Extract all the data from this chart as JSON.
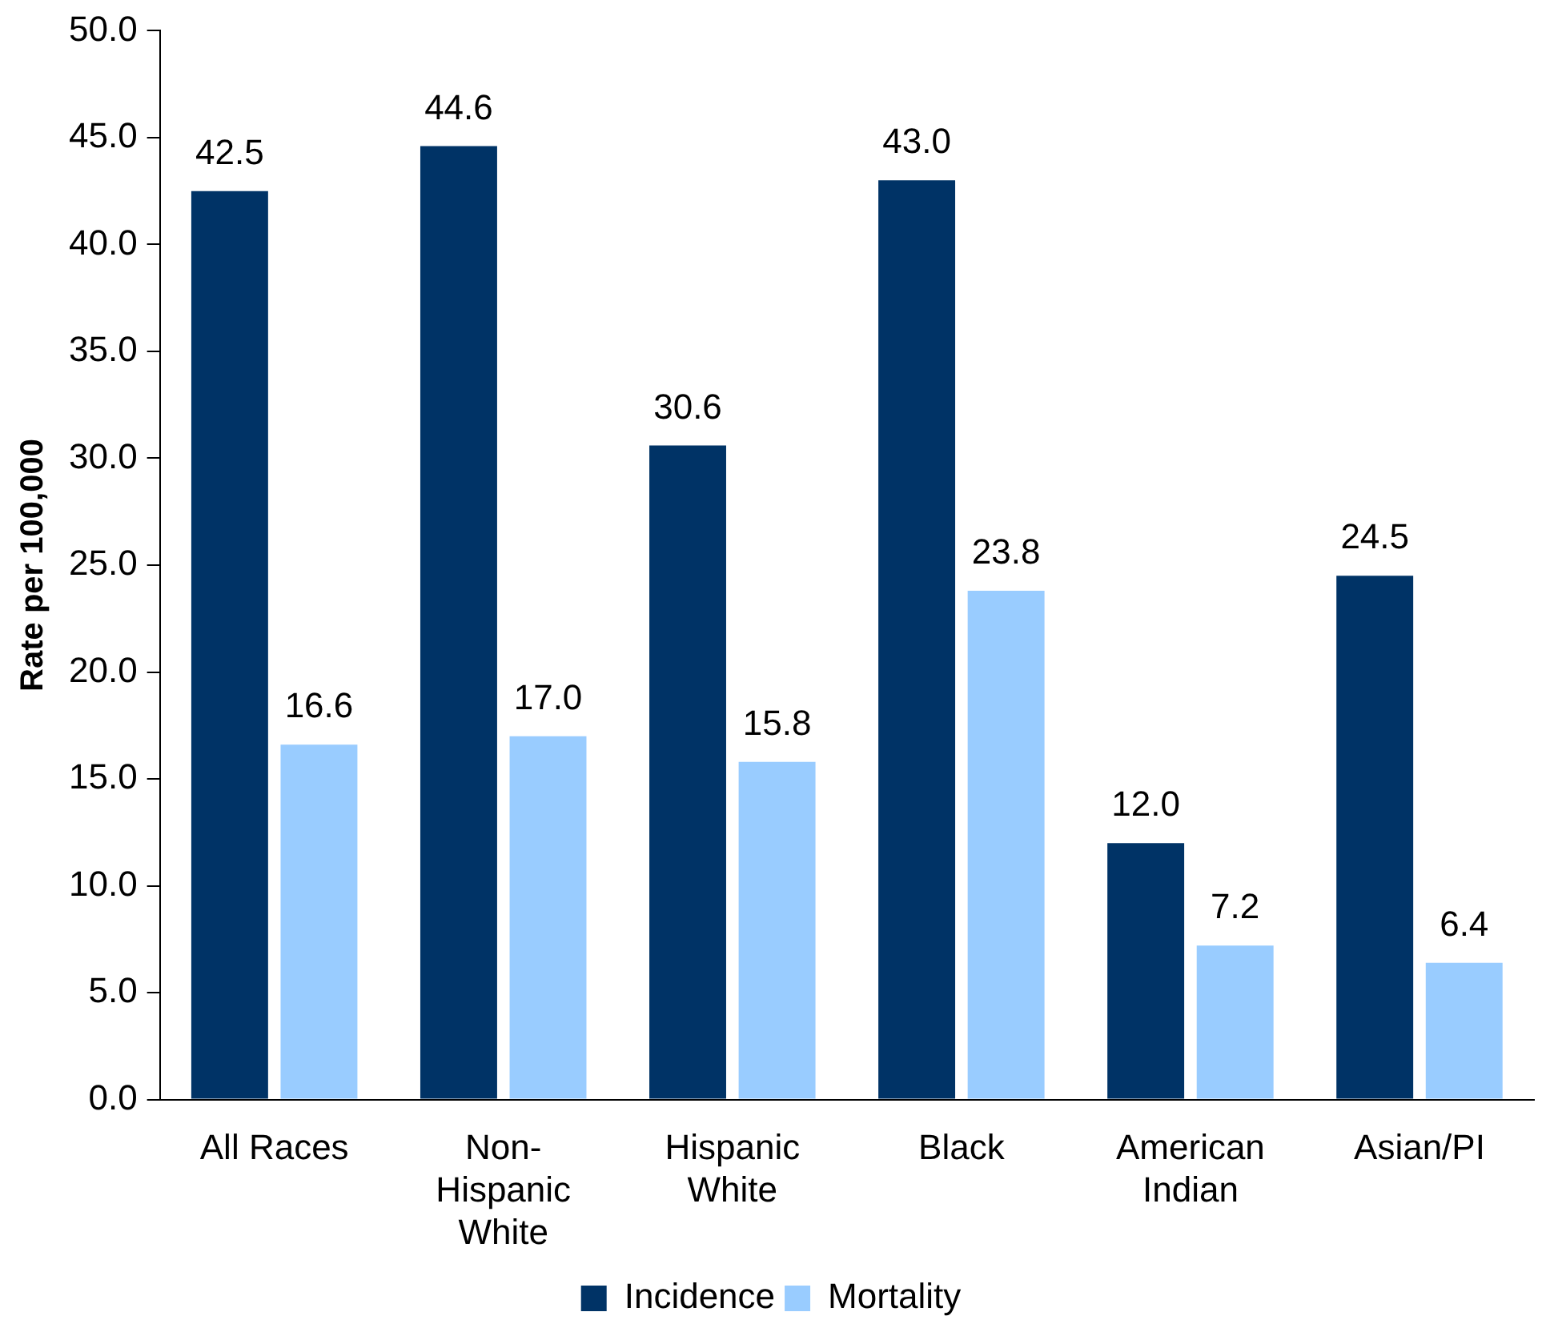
{
  "chart_data": {
    "type": "bar",
    "ylabel": "Rate per 100,000",
    "categories": [
      "All Races",
      "Non-Hispanic White",
      "Hispanic White",
      "Black",
      "American Indian",
      "Asian/PI"
    ],
    "series": [
      {
        "name": "Incidence",
        "color": "#003366",
        "values": [
          42.5,
          44.6,
          30.6,
          43.0,
          12.0,
          24.5
        ],
        "value_labels": [
          "42.5",
          "44.6",
          "30.6",
          "43.0",
          "12.0",
          "24.5"
        ]
      },
      {
        "name": "Mortality",
        "color": "#99ccff",
        "values": [
          16.6,
          17.0,
          15.8,
          23.8,
          7.2,
          6.4
        ],
        "value_labels": [
          "16.6",
          "17.0",
          "15.8",
          "23.8",
          "7.2",
          "6.4"
        ]
      }
    ],
    "ylim": [
      0,
      50
    ],
    "yticks": [
      {
        "value": 0,
        "label": "0.0"
      },
      {
        "value": 5,
        "label": "5.0"
      },
      {
        "value": 10,
        "label": "10.0"
      },
      {
        "value": 15,
        "label": "15.0"
      },
      {
        "value": 20,
        "label": "20.0"
      },
      {
        "value": 25,
        "label": "25.0"
      },
      {
        "value": 30,
        "label": "30.0"
      },
      {
        "value": 35,
        "label": "35.0"
      },
      {
        "value": 40,
        "label": "40.0"
      },
      {
        "value": 45,
        "label": "45.0"
      },
      {
        "value": 50,
        "label": "50.0"
      }
    ],
    "grid": false,
    "legend": "bottom"
  }
}
